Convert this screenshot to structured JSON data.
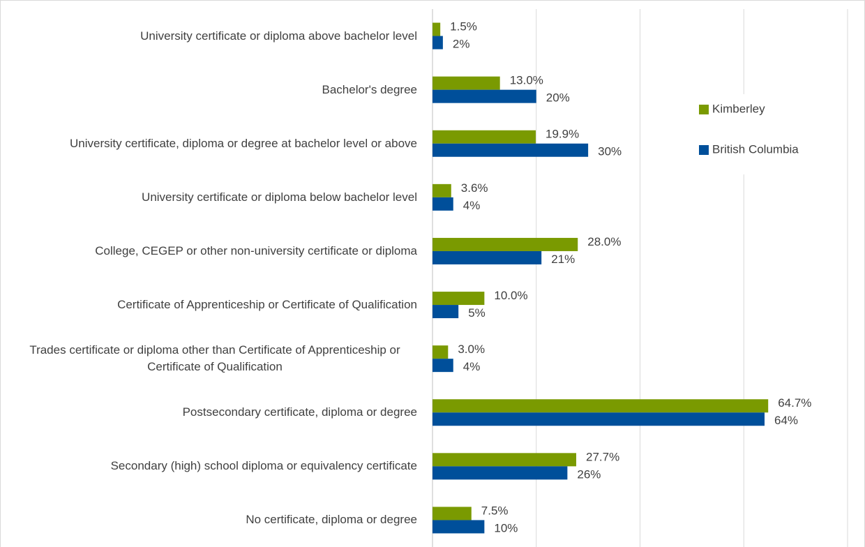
{
  "chart_data": {
    "type": "barh",
    "categories": [
      "University certificate or diploma above bachelor level",
      "Bachelor's degree",
      "University certificate, diploma or degree at bachelor level or above",
      "University certificate or diploma below bachelor level",
      "College, CEGEP or other non-university certificate or diploma",
      "Certificate of Apprenticeship or Certificate of Qualification",
      "Trades certificate or diploma other than Certificate of Apprenticeship or Certificate of Qualification",
      "Postsecondary certificate, diploma or degree",
      "Secondary (high) school diploma or equivalency certificate",
      "No certificate, diploma or degree"
    ],
    "series": [
      {
        "name": "Kimberley",
        "color": "#7a9a01",
        "values": [
          1.5,
          13.0,
          19.9,
          3.6,
          28.0,
          10.0,
          3.0,
          64.7,
          27.7,
          7.5
        ],
        "value_labels": [
          "1.5%",
          "13.0%",
          "19.9%",
          "3.6%",
          "28.0%",
          "10.0%",
          "3.0%",
          "64.7%",
          "27.7%",
          "7.5%"
        ]
      },
      {
        "name": "British Columbia",
        "color": "#004f9a",
        "values": [
          2,
          20,
          30,
          4,
          21,
          5,
          4,
          64,
          26,
          10
        ],
        "value_labels": [
          "2%",
          "20%",
          "30%",
          "4%",
          "21%",
          "5%",
          "4%",
          "64%",
          "26%",
          "10%"
        ]
      }
    ],
    "xlim": [
      0,
      80
    ],
    "xticks": [
      0,
      20,
      40,
      60,
      80
    ],
    "grid": true,
    "legend": "right"
  }
}
